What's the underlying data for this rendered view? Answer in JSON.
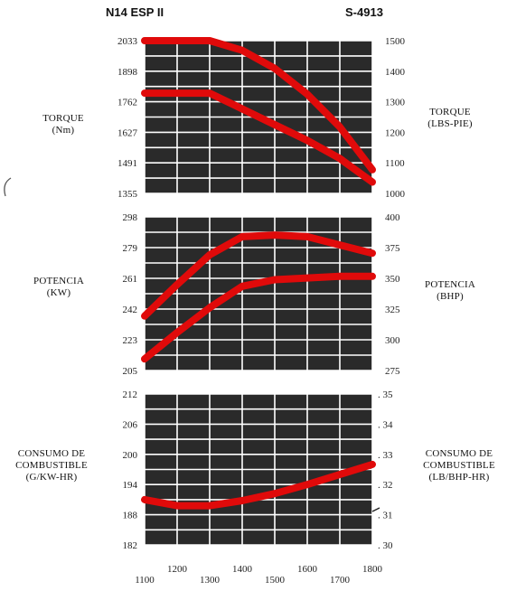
{
  "header": {
    "engine": "N14 ESP II",
    "curve_number": "S-4913"
  },
  "colors": {
    "curve": "#e00a0a",
    "grid": "#ffffff",
    "panel": "#2a2a2a",
    "tick": "#222222"
  },
  "chart_data": [
    {
      "type": "line",
      "name": "torque",
      "left_label": [
        "TORQUE",
        "(Nm)"
      ],
      "right_label": [
        "TORQUE",
        "(LBS-PIE)"
      ],
      "left_ticks": [
        "2033",
        "1898",
        "1762",
        "1627",
        "1491",
        "1355"
      ],
      "right_ticks": [
        "1500",
        "1400",
        "1300",
        "1200",
        "1100",
        "1000"
      ],
      "ylim": [
        1355,
        2033
      ],
      "x_range": [
        1100,
        1800
      ],
      "series": [
        {
          "x": [
            1100,
            1300,
            1400,
            1500,
            1600,
            1700,
            1800
          ],
          "y": [
            2033,
            2033,
            1990,
            1910,
            1795,
            1650,
            1460
          ]
        },
        {
          "x": [
            1100,
            1300,
            1400,
            1500,
            1600,
            1700,
            1800
          ],
          "y": [
            1800,
            1800,
            1730,
            1660,
            1590,
            1510,
            1405
          ]
        }
      ]
    },
    {
      "type": "line",
      "name": "power",
      "left_label": [
        "POTENCIA",
        "(KW)"
      ],
      "right_label": [
        "POTENCIA",
        "(BHP)"
      ],
      "left_ticks": [
        "298",
        "279",
        "261",
        "242",
        "223",
        "205"
      ],
      "right_ticks": [
        "400",
        "375",
        "350",
        "325",
        "300",
        "275"
      ],
      "ylim": [
        205,
        298
      ],
      "x_range": [
        1100,
        1800
      ],
      "series": [
        {
          "x": [
            1100,
            1200,
            1300,
            1400,
            1500,
            1600,
            1700,
            1800
          ],
          "y": [
            238,
            257,
            275,
            286,
            287,
            286,
            281,
            276
          ]
        },
        {
          "x": [
            1100,
            1200,
            1300,
            1400,
            1500,
            1600,
            1700,
            1800
          ],
          "y": [
            212,
            228,
            243,
            256,
            260,
            261,
            262,
            262
          ]
        }
      ]
    },
    {
      "type": "line",
      "name": "fuel",
      "left_label": [
        "CONSUMO DE",
        "COMBUSTIBLE",
        "(G/KW-HR)"
      ],
      "right_label": [
        "CONSUMO DE",
        "COMBUSTIBLE",
        "(LB/BHP-HR)"
      ],
      "left_ticks": [
        "212",
        "206",
        "200",
        "194",
        "188",
        "182"
      ],
      "right_ticks": [
        ". 35",
        ". 34",
        ". 33",
        ". 32",
        ". 31",
        ". 30"
      ],
      "ylim": [
        182,
        212
      ],
      "x_range": [
        1100,
        1800
      ],
      "series": [
        {
          "x": [
            1100,
            1200,
            1300,
            1400,
            1500,
            1600,
            1700,
            1800
          ],
          "y": [
            191.0,
            189.8,
            189.8,
            190.8,
            192.2,
            194.0,
            196.0,
            198.0
          ]
        }
      ]
    }
  ],
  "x_axis": {
    "ticks_low": [
      "1100",
      "1300",
      "1500",
      "1700"
    ],
    "ticks_high": [
      "1200",
      "1400",
      "1600",
      "1800"
    ]
  }
}
